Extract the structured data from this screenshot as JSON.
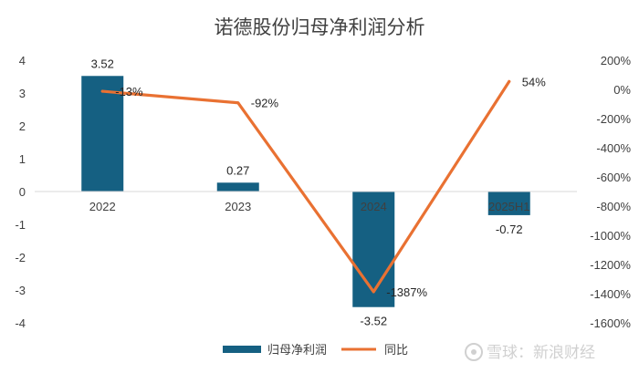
{
  "chart_data": {
    "type": "bar",
    "title": "诺德股份归母净利润分析",
    "categories": [
      "2022",
      "2023",
      "2024",
      "2025H1"
    ],
    "series": [
      {
        "name": "归母净利润",
        "type": "bar",
        "axis": "left",
        "color": "#156082",
        "values": [
          3.52,
          0.27,
          -3.52,
          -0.72
        ],
        "labels": [
          "3.52",
          "0.27",
          "-3.52",
          "-0.72"
        ]
      },
      {
        "name": "同比",
        "type": "line",
        "axis": "right",
        "color": "#e97132",
        "values": [
          -13,
          -92,
          -1387,
          54
        ],
        "labels": [
          "-13%",
          "-92%",
          "-1387%",
          "54%"
        ]
      }
    ],
    "y_left": {
      "lim": [
        -4,
        4
      ],
      "ticks": [
        "4",
        "3",
        "2",
        "1",
        "0",
        "-1",
        "-2",
        "-3",
        "-4"
      ]
    },
    "y_right": {
      "lim": [
        -1600,
        200
      ],
      "ticks": [
        "200%",
        "0%",
        "-200%",
        "-400%",
        "-600%",
        "-800%",
        "-1000%",
        "-1200%",
        "-1400%",
        "-1600%"
      ]
    },
    "grid": false,
    "legend_position": "bottom"
  },
  "watermark": "雪球：新浪财经"
}
